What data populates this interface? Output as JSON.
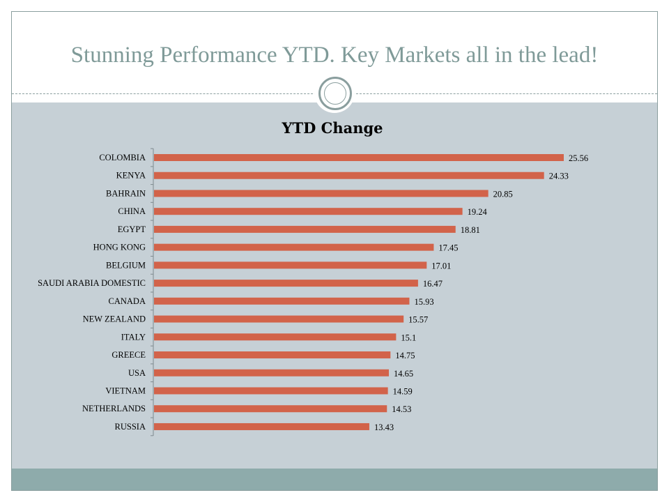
{
  "slide": {
    "title": "Stunning Performance  YTD. Key Markets all in the lead!"
  },
  "colors": {
    "bar": "#d2634a",
    "panel": "#c6d0d6",
    "band": "#8eabab",
    "title": "#7f9a98"
  },
  "chart_data": {
    "type": "bar",
    "orientation": "horizontal",
    "title": "YTD Change",
    "xlabel": "",
    "ylabel": "",
    "categories": [
      "COLOMBIA",
      "KENYA",
      "BAHRAIN",
      "CHINA",
      "EGYPT",
      "HONG KONG",
      "BELGIUM",
      "SAUDI ARABIA DOMESTIC",
      "CANADA",
      "NEW ZEALAND",
      "ITALY",
      "GREECE",
      "USA",
      "VIETNAM",
      "NETHERLANDS",
      "RUSSIA"
    ],
    "values": [
      25.56,
      24.33,
      20.85,
      19.24,
      18.81,
      17.45,
      17.01,
      16.47,
      15.93,
      15.57,
      15.1,
      14.75,
      14.65,
      14.59,
      14.53,
      13.43
    ],
    "value_labels": [
      "25.56",
      "24.33",
      "20.85",
      "19.24",
      "18.81",
      "17.45",
      "17.01",
      "16.47",
      "15.93",
      "15.57",
      "15.1",
      "14.75",
      "14.65",
      "14.59",
      "14.53",
      "13.43"
    ],
    "xlim": [
      0,
      25.56
    ],
    "grid": false,
    "legend": "none"
  }
}
